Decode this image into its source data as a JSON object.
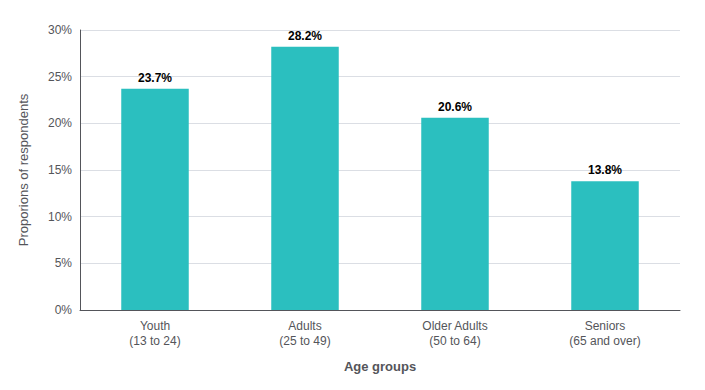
{
  "chart_data": {
    "type": "bar",
    "categories": [
      "Youth\n(13 to 24)",
      "Adults\n(25 to 49)",
      "Older Adults\n(50 to 64)",
      "Seniors\n(65 and over)"
    ],
    "values": [
      23.7,
      28.2,
      20.6,
      13.8
    ],
    "value_labels": [
      "23.7%",
      "28.2%",
      "20.6%",
      "13.8%"
    ],
    "data_labels": true,
    "color": "#2BBFBF",
    "xlabel": "Age groups",
    "ylabel": "Proporions of respondents",
    "ylim": [
      0,
      30
    ],
    "yticks": [
      {
        "value": 0,
        "label": "0%"
      },
      {
        "value": 5,
        "label": "5%"
      },
      {
        "value": 10,
        "label": "10%"
      },
      {
        "value": 15,
        "label": "15%"
      },
      {
        "value": 20,
        "label": "20%"
      },
      {
        "value": 25,
        "label": "25%"
      },
      {
        "value": 30,
        "label": "30%"
      }
    ],
    "grid": true
  }
}
